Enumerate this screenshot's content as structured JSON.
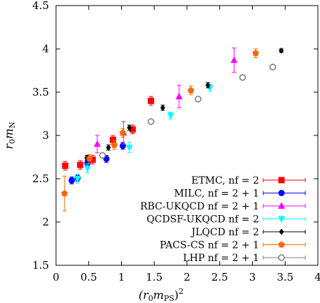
{
  "chart_data": {
    "type": "scatter",
    "title": "",
    "xlabel": "(r0mPS)2",
    "ylabel": "r0mN",
    "xlim": [
      0,
      4
    ],
    "ylim": [
      1.5,
      4.5
    ],
    "x_ticks": [
      "0",
      "0.5",
      "1",
      "1.5",
      "2",
      "2.5",
      "3",
      "3.5",
      "4"
    ],
    "y_ticks": [
      "1.5",
      "2",
      "2.5",
      "3",
      "3.5",
      "4",
      "4.5"
    ],
    "grid": false,
    "legend_position": "bottom-right",
    "series": [
      {
        "name": "ETMC, nf = 2",
        "marker": "square",
        "color": "#ff0000",
        "points": [
          {
            "x": 0.14,
            "y": 2.65,
            "err": 0.05
          },
          {
            "x": 0.37,
            "y": 2.66,
            "err": 0.05
          },
          {
            "x": 0.56,
            "y": 2.72,
            "err": 0.05
          },
          {
            "x": 0.87,
            "y": 2.95,
            "err": 0.05
          },
          {
            "x": 1.17,
            "y": 3.07,
            "err": 0.05
          },
          {
            "x": 1.45,
            "y": 3.4,
            "err": 0.05
          }
        ]
      },
      {
        "name": "MILC, nf = 2 + 1",
        "marker": "circle",
        "color": "#0000ff",
        "points": [
          {
            "x": 0.24,
            "y": 2.48,
            "err": 0.04
          },
          {
            "x": 0.33,
            "y": 2.51,
            "err": 0.04
          },
          {
            "x": 0.48,
            "y": 2.68,
            "err": 0.04
          },
          {
            "x": 0.77,
            "y": 2.73,
            "err": 0.04
          },
          {
            "x": 1.02,
            "y": 2.88,
            "err": 0.04
          }
        ]
      },
      {
        "name": "RBC-UKQCD nf = 2 + 1",
        "marker": "triangle-up",
        "color": "#ff00ff",
        "points": [
          {
            "x": 0.63,
            "y": 2.9,
            "err": 0.1
          },
          {
            "x": 1.03,
            "y": 3.03,
            "err": 0.13
          },
          {
            "x": 1.88,
            "y": 3.45,
            "err": 0.13
          },
          {
            "x": 2.72,
            "y": 3.87,
            "err": 0.14
          }
        ]
      },
      {
        "name": "QCDSF-UKQCD nf = 2",
        "marker": "triangle-down",
        "color": "#00ffff",
        "points": [
          {
            "x": 0.33,
            "y": 2.5,
            "err": 0.05
          },
          {
            "x": 0.48,
            "y": 2.62,
            "err": 0.05
          },
          {
            "x": 1.12,
            "y": 2.86,
            "err": 0.06
          },
          {
            "x": 1.75,
            "y": 3.23,
            "err": 0.04
          },
          {
            "x": 2.35,
            "y": 3.55,
            "err": 0.04
          }
        ]
      },
      {
        "name": "JLQCD nf = 2",
        "marker": "diamond",
        "color": "#000000",
        "points": [
          {
            "x": 0.47,
            "y": 2.74,
            "err": 0.03
          },
          {
            "x": 0.8,
            "y": 2.86,
            "err": 0.03
          },
          {
            "x": 1.12,
            "y": 3.09,
            "err": 0.03
          },
          {
            "x": 1.63,
            "y": 3.32,
            "err": 0.03
          },
          {
            "x": 2.32,
            "y": 3.58,
            "err": 0.03
          },
          {
            "x": 3.44,
            "y": 3.98,
            "err": 0.02
          }
        ]
      },
      {
        "name": "PACS-CS nf = 2 + 1",
        "marker": "pentagon",
        "color": "#ff6600",
        "points": [
          {
            "x": 0.13,
            "y": 2.33,
            "err": 0.2
          },
          {
            "x": 0.51,
            "y": 2.73,
            "err": 0.05
          },
          {
            "x": 0.89,
            "y": 2.89,
            "err": 0.05
          },
          {
            "x": 1.02,
            "y": 3.03,
            "err": 0.05
          },
          {
            "x": 2.06,
            "y": 3.52,
            "err": 0.05
          },
          {
            "x": 3.05,
            "y": 3.95,
            "err": 0.05
          }
        ]
      },
      {
        "name": "LHP nf = 2 + 1",
        "marker": "open-circle",
        "color": "#808080",
        "points": [
          {
            "x": 0.71,
            "y": 2.77,
            "err": 0.02
          },
          {
            "x": 1.45,
            "y": 3.16,
            "err": 0.02
          },
          {
            "x": 2.17,
            "y": 3.42,
            "err": 0.02
          },
          {
            "x": 2.85,
            "y": 3.67,
            "err": 0.02
          },
          {
            "x": 3.31,
            "y": 3.79,
            "err": 0.02
          }
        ]
      }
    ]
  }
}
